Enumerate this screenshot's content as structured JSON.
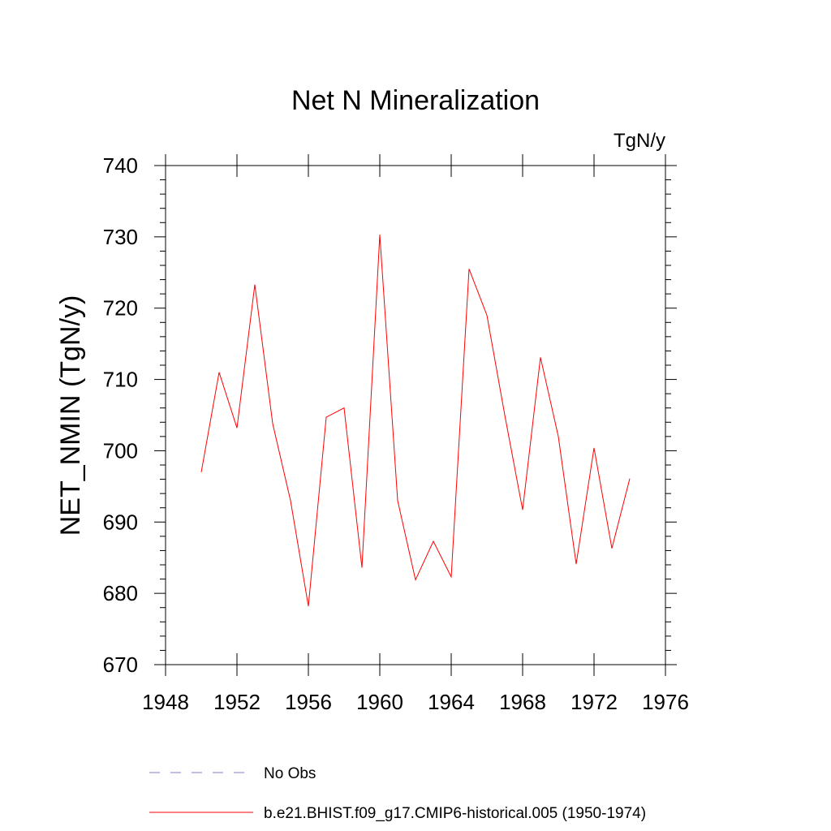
{
  "chart_data": {
    "type": "line",
    "title": "Net N Mineralization",
    "units_label": "TgN/y",
    "xlabel": "",
    "ylabel": "NET_NMIN  (TgN/y)",
    "xlim": [
      1948,
      1976
    ],
    "ylim": [
      670,
      740
    ],
    "x_ticks": [
      1948,
      1952,
      1956,
      1960,
      1964,
      1968,
      1972,
      1976
    ],
    "y_ticks": [
      670,
      680,
      690,
      700,
      710,
      720,
      730,
      740
    ],
    "grid": false,
    "legend_position": "bottom",
    "series": [
      {
        "name": "b.e21.BHIST.f09_g17.CMIP6-historical.005 (1950-1974)",
        "color": "#ff0000",
        "dash": "solid",
        "x": [
          1950,
          1951,
          1952,
          1953,
          1954,
          1955,
          1956,
          1957,
          1958,
          1959,
          1960,
          1961,
          1962,
          1963,
          1964,
          1965,
          1966,
          1967,
          1968,
          1969,
          1970,
          1971,
          1972,
          1973,
          1974
        ],
        "y": [
          697.0,
          711.0,
          703.2,
          723.3,
          703.8,
          693.0,
          678.2,
          704.7,
          706.0,
          683.6,
          730.3,
          693.0,
          681.9,
          687.3,
          682.3,
          725.5,
          719.0,
          705.0,
          691.7,
          713.1,
          702.0,
          684.1,
          700.4,
          686.3,
          696.1
        ]
      }
    ],
    "legend": [
      {
        "label": "No Obs",
        "color": "#7f7fbf",
        "dash": "dashed"
      },
      {
        "label": "b.e21.BHIST.f09_g17.CMIP6-historical.005 (1950-1974)",
        "color": "#ff0000",
        "dash": "solid"
      }
    ]
  }
}
